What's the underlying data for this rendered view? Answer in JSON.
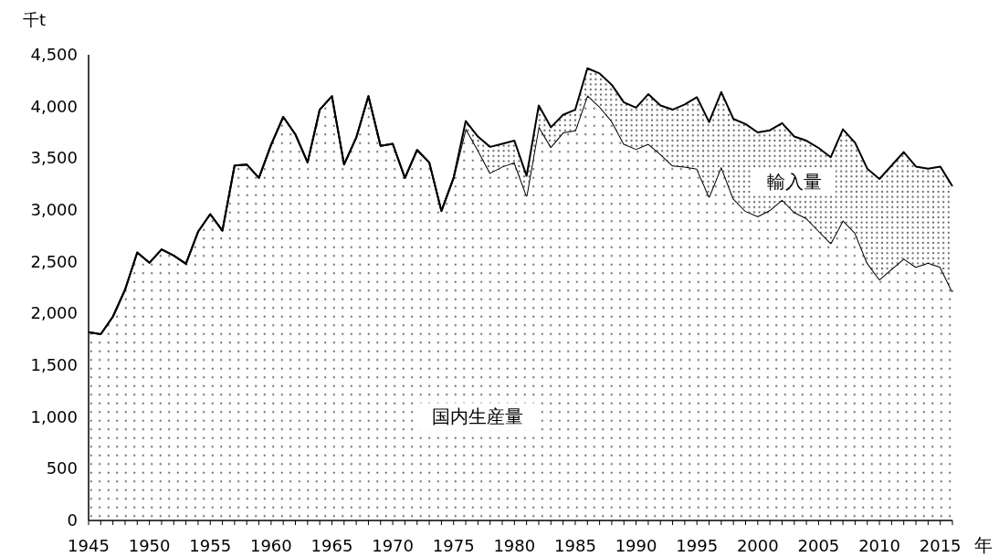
{
  "chart_data": {
    "type": "area",
    "stacked": true,
    "xlabel": "年",
    "ylabel": "千t",
    "legend": false,
    "x": [
      1945,
      1946,
      1947,
      1948,
      1949,
      1950,
      1951,
      1952,
      1953,
      1954,
      1955,
      1956,
      1957,
      1958,
      1959,
      1960,
      1961,
      1962,
      1963,
      1964,
      1965,
      1966,
      1967,
      1968,
      1969,
      1970,
      1971,
      1972,
      1973,
      1974,
      1975,
      1976,
      1977,
      1978,
      1979,
      1980,
      1981,
      1982,
      1983,
      1984,
      1985,
      1986,
      1987,
      1988,
      1989,
      1990,
      1991,
      1992,
      1993,
      1994,
      1995,
      1996,
      1997,
      1998,
      1999,
      2000,
      2001,
      2002,
      2003,
      2004,
      2005,
      2006,
      2007,
      2008,
      2009,
      2010,
      2011,
      2012,
      2013,
      2014,
      2015,
      2016
    ],
    "series": [
      {
        "name": "国内生産量",
        "color": "#000000",
        "values": [
          1820,
          1800,
          1970,
          2230,
          2590,
          2490,
          2620,
          2560,
          2480,
          2790,
          2960,
          2800,
          3430,
          3440,
          3310,
          3630,
          3900,
          3730,
          3460,
          3970,
          4100,
          3440,
          3700,
          4100,
          3620,
          3640,
          3310,
          3580,
          3460,
          2990,
          3310,
          3790,
          3580,
          3360,
          3420,
          3460,
          3140,
          3810,
          3610,
          3750,
          3770,
          4110,
          4000,
          3860,
          3640,
          3590,
          3640,
          3540,
          3430,
          3420,
          3400,
          3130,
          3420,
          3110,
          2990,
          2940,
          3000,
          3100,
          2980,
          2920,
          2800,
          2680,
          2900,
          2780,
          2490,
          2330,
          2430,
          2530,
          2450,
          2490,
          2450,
          2210
        ]
      },
      {
        "name": "輸入量",
        "color": "#000000",
        "values": [
          0,
          0,
          0,
          0,
          0,
          0,
          0,
          0,
          0,
          0,
          0,
          0,
          0,
          0,
          0,
          0,
          0,
          0,
          0,
          0,
          0,
          0,
          0,
          0,
          0,
          0,
          0,
          0,
          0,
          0,
          0,
          70,
          130,
          250,
          220,
          210,
          190,
          200,
          190,
          170,
          200,
          260,
          320,
          350,
          400,
          400,
          480,
          470,
          540,
          600,
          690,
          720,
          720,
          770,
          840,
          810,
          770,
          740,
          730,
          750,
          800,
          830,
          880,
          870,
          910,
          970,
          1000,
          1030,
          970,
          910,
          970,
          1020
        ]
      }
    ],
    "xlim": [
      1945,
      2016
    ],
    "xticks": [
      1945,
      {
        "value": 1946,
        "label": null
      },
      {
        "value": 1947,
        "label": null
      },
      {
        "value": 1948,
        "label": null
      },
      {
        "value": 1949,
        "label": null
      },
      1950,
      {
        "value": 1951,
        "label": null
      },
      {
        "value": 1952,
        "label": null
      },
      {
        "value": 1953,
        "label": null
      },
      {
        "value": 1954,
        "label": null
      },
      1955,
      {
        "value": 1956,
        "label": null
      },
      {
        "value": 1957,
        "label": null
      },
      {
        "value": 1958,
        "label": null
      },
      {
        "value": 1959,
        "label": null
      },
      1960,
      {
        "value": 1961,
        "label": null
      },
      {
        "value": 1962,
        "label": null
      },
      {
        "value": 1963,
        "label": null
      },
      {
        "value": 1964,
        "label": null
      },
      1965,
      {
        "value": 1966,
        "label": null
      },
      {
        "value": 1967,
        "label": null
      },
      {
        "value": 1968,
        "label": null
      },
      {
        "value": 1969,
        "label": null
      },
      1970,
      {
        "value": 1971,
        "label": null
      },
      {
        "value": 1972,
        "label": null
      },
      {
        "value": 1973,
        "label": null
      },
      {
        "value": 1974,
        "label": null
      },
      1975,
      {
        "value": 1976,
        "label": null
      },
      {
        "value": 1977,
        "label": null
      },
      {
        "value": 1978,
        "label": null
      },
      {
        "value": 1979,
        "label": null
      },
      1980,
      {
        "value": 1981,
        "label": null
      },
      {
        "value": 1982,
        "label": null
      },
      {
        "value": 1983,
        "label": null
      },
      {
        "value": 1984,
        "label": null
      },
      1985,
      {
        "value": 1986,
        "label": null
      },
      {
        "value": 1987,
        "label": null
      },
      {
        "value": 1988,
        "label": null
      },
      {
        "value": 1989,
        "label": null
      },
      1990,
      {
        "value": 1991,
        "label": null
      },
      {
        "value": 1992,
        "label": null
      },
      {
        "value": 1993,
        "label": null
      },
      {
        "value": 1994,
        "label": null
      },
      1995,
      {
        "value": 1996,
        "label": null
      },
      {
        "value": 1997,
        "label": null
      },
      {
        "value": 1998,
        "label": null
      },
      {
        "value": 1999,
        "label": null
      },
      2000,
      {
        "value": 2001,
        "label": null
      },
      {
        "value": 2002,
        "label": null
      },
      {
        "value": 2003,
        "label": null
      },
      {
        "value": 2004,
        "label": null
      },
      2005,
      {
        "value": 2006,
        "label": null
      },
      {
        "value": 2007,
        "label": null
      },
      {
        "value": 2008,
        "label": null
      },
      {
        "value": 2009,
        "label": null
      },
      2010,
      {
        "value": 2011,
        "label": null
      },
      {
        "value": 2012,
        "label": null
      },
      {
        "value": 2013,
        "label": null
      },
      {
        "value": 2014,
        "label": null
      },
      2015,
      {
        "value": 2016,
        "label": null
      }
    ],
    "ylim": [
      0,
      4500
    ],
    "yticks": [
      0,
      500,
      {
        "value": 1000,
        "label": "1,000"
      },
      {
        "value": 1500,
        "label": "1,500"
      },
      {
        "value": 2000,
        "label": "2,000"
      },
      {
        "value": 2500,
        "label": "2,500"
      },
      {
        "value": 3000,
        "label": "3,000"
      },
      {
        "value": 3500,
        "label": "3,500"
      },
      {
        "value": 4000,
        "label": "4,000"
      },
      {
        "value": 4500,
        "label": "4,500"
      }
    ]
  }
}
